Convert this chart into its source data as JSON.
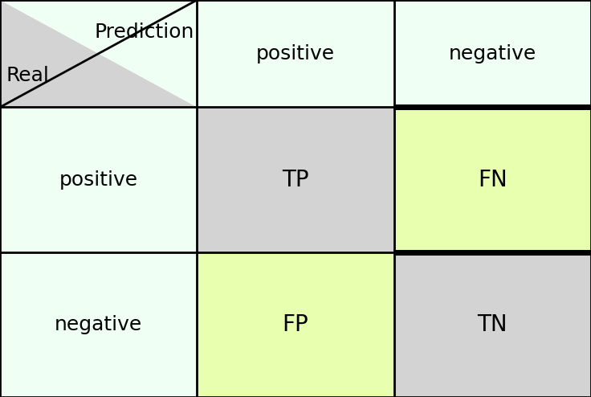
{
  "fig_width": 7.36,
  "fig_height": 4.94,
  "dpi": 100,
  "bg_color": "#ffffff",
  "cell_green": "#f0fff4",
  "cell_grey": "#d3d3d3",
  "cell_yellow": "#e8ffb0",
  "labels": {
    "prediction": "Prediction",
    "real": "Real",
    "positive": "positive",
    "negative": "negative",
    "TP": "TP",
    "FN": "FN",
    "FP": "FP",
    "TN": "TN"
  },
  "border_lw": 2.0,
  "thick_border_lw": 5.0,
  "font_size_labels": 18,
  "font_size_cells": 20
}
